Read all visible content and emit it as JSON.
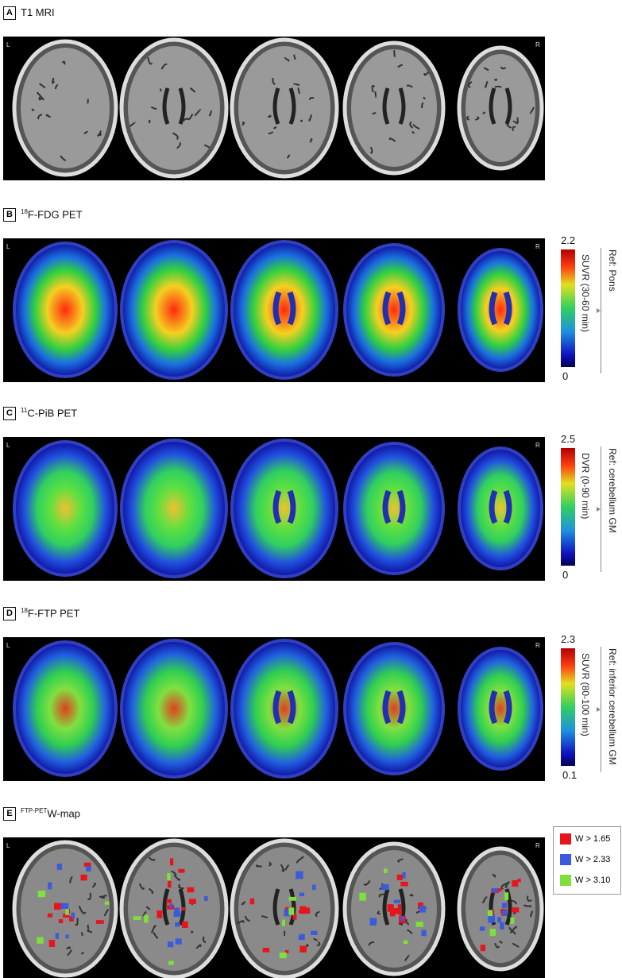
{
  "panels": [
    {
      "letter": "A",
      "title_sup": "",
      "title": "T1 MRI",
      "left": "L",
      "right": "R"
    },
    {
      "letter": "B",
      "title_sup": "18",
      "title": "F-FDG PET",
      "left": "L",
      "right": "R",
      "colorbar": {
        "max": 2.2,
        "min": 0,
        "label": "SUVR (30-60 min)",
        "reference": "Ref: Pons"
      }
    },
    {
      "letter": "C",
      "title_sup": "11",
      "title": "C-PiB PET",
      "left": "L",
      "right": "R",
      "colorbar": {
        "max": 2.5,
        "min": 0,
        "label": "DVR (0-90 min)",
        "reference": "Ref: cerebellum GM"
      }
    },
    {
      "letter": "D",
      "title_sup": "18",
      "title": "F-FTP PET",
      "left": "L",
      "right": "R",
      "colorbar": {
        "max": 2.3,
        "min": 0.1,
        "label": "SUVR (80-100 min)",
        "reference": "Ref: inferior cerebellum GM"
      }
    },
    {
      "letter": "E",
      "title_sup": "FTP-PET",
      "title": "W-map",
      "left": "L",
      "right": "R",
      "legend": [
        {
          "label": "W > 1.65",
          "color": "#e8141c"
        },
        {
          "label": "W > 2.33",
          "color": "#3b5bdb"
        },
        {
          "label": "W > 3.10",
          "color": "#7ee03a"
        }
      ]
    }
  ]
}
